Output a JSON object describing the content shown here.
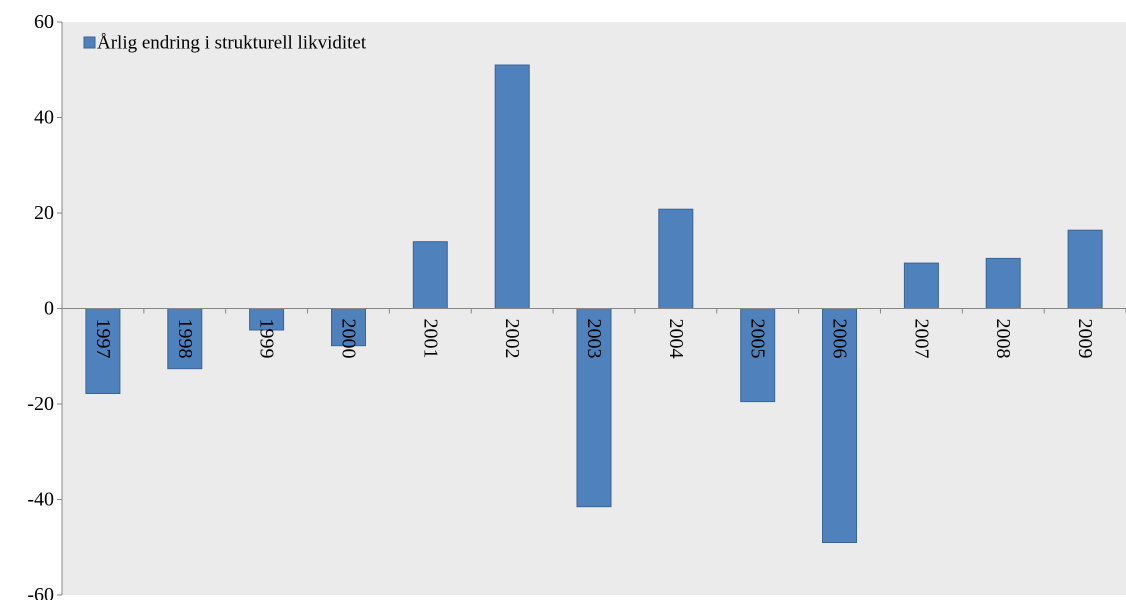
{
  "chart_data": {
    "type": "bar",
    "categories": [
      "1997",
      "1998",
      "1999",
      "2000",
      "2001",
      "2002",
      "2003",
      "2004",
      "2005",
      "2006",
      "2007",
      "2008",
      "2009"
    ],
    "series": [
      {
        "name": "Årlig endring i strukturell likviditet",
        "values": [
          -17.8,
          -12.6,
          -4.5,
          -7.8,
          14,
          51,
          -41.5,
          20.8,
          -19.5,
          -49,
          9.5,
          10.5,
          16.4
        ]
      }
    ],
    "ylim": [
      -60,
      60
    ],
    "yticks": [
      60,
      40,
      20,
      0,
      -20,
      -40,
      -60
    ],
    "ytick_labels": [
      "60",
      "40",
      "20",
      "0",
      "-20",
      "-40",
      "-60"
    ],
    "xlabel": "",
    "ylabel": "",
    "grid": false,
    "legend_position": "top-left",
    "colors": {
      "bar_fill": "#4f81bd",
      "bar_stroke": "#3a6496",
      "plot_background": "#ebebeb",
      "axis": "#868686"
    }
  }
}
